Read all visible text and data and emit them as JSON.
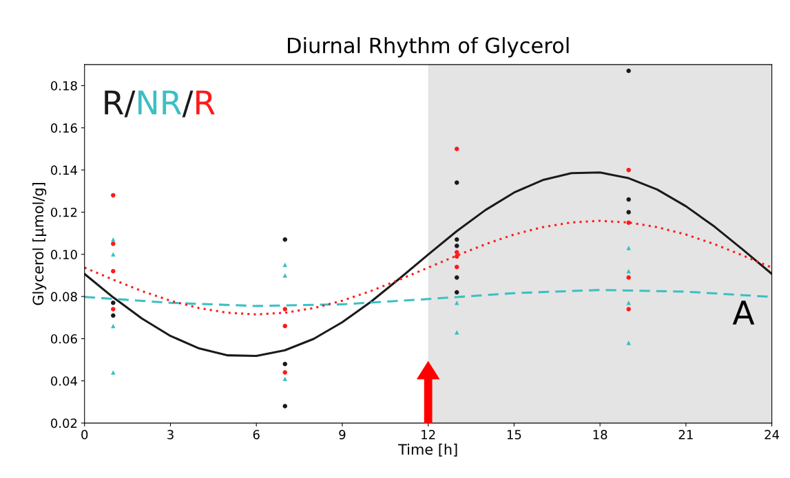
{
  "chart_data": {
    "type": "scatter",
    "title": "Diurnal Rhythm of Glycerol",
    "xlabel": "Time [h]",
    "ylabel": "Glycerol [µmol/g]",
    "xlim": [
      0,
      24
    ],
    "xticks": [
      0,
      3,
      6,
      9,
      12,
      15,
      18,
      21,
      24
    ],
    "ylim": [
      0.02,
      0.19
    ],
    "yticks": [
      {
        "value": 0.02,
        "label": "0.02"
      },
      {
        "value": 0.04,
        "label": "0.04"
      },
      {
        "value": 0.06,
        "label": "0.06"
      },
      {
        "value": 0.08,
        "label": "0.08"
      },
      {
        "value": 0.1,
        "label": "0.10"
      },
      {
        "value": 0.12,
        "label": "0.12"
      },
      {
        "value": 0.14,
        "label": "0.14"
      },
      {
        "value": 0.16,
        "label": "0.16"
      },
      {
        "value": 0.18,
        "label": "0.18"
      }
    ],
    "grid": false,
    "legend": false,
    "bands": [
      {
        "axis": "x",
        "from": 12,
        "to": 24,
        "color": "#e4e4e4"
      }
    ],
    "annotations": [
      "R",
      "/",
      "NR",
      "/",
      "R",
      "A"
    ],
    "series": [
      {
        "color": "#1a1a1a",
        "marker": "circle",
        "x": [
          1,
          1,
          7,
          7,
          7,
          13,
          13,
          13,
          13,
          13,
          19,
          19,
          19
        ],
        "values": [
          0.077,
          0.071,
          0.107,
          0.048,
          0.028,
          0.134,
          0.107,
          0.104,
          0.089,
          0.082,
          0.187,
          0.126,
          0.12
        ]
      },
      {
        "color": "#3bbfc4",
        "marker": "triangle",
        "x": [
          1,
          1,
          1,
          1,
          7,
          7,
          7,
          13,
          13,
          19,
          19,
          19,
          19
        ],
        "values": [
          0.107,
          0.1,
          0.066,
          0.044,
          0.095,
          0.09,
          0.041,
          0.077,
          0.063,
          0.103,
          0.092,
          0.077,
          0.058
        ]
      },
      {
        "color": "#ff1a1a",
        "marker": "circle",
        "x": [
          1,
          1,
          1,
          1,
          7,
          7,
          7,
          13,
          13,
          13,
          13,
          19,
          19,
          19,
          19
        ],
        "values": [
          0.128,
          0.105,
          0.092,
          0.074,
          0.074,
          0.066,
          0.044,
          0.15,
          0.101,
          0.099,
          0.094,
          0.14,
          0.115,
          0.089,
          0.074
        ]
      },
      {
        "type": "line",
        "color": "#1a1a1a",
        "line_style": "solid",
        "x": [
          0,
          1,
          2,
          3,
          4,
          5,
          6,
          7,
          8,
          9,
          10,
          11,
          12,
          13,
          14,
          15,
          16,
          17,
          18,
          19,
          20,
          21,
          22,
          23,
          24
        ],
        "values": [
          0.0907,
          0.0796,
          0.0696,
          0.0613,
          0.0554,
          0.0521,
          0.0518,
          0.0545,
          0.0599,
          0.0678,
          0.0775,
          0.0885,
          0.0999,
          0.111,
          0.121,
          0.1293,
          0.1352,
          0.1385,
          0.1388,
          0.1361,
          0.1307,
          0.1228,
          0.1131,
          0.1021,
          0.0907
        ]
      },
      {
        "type": "line",
        "color": "#3bbfc4",
        "line_style": "dashed",
        "x": [
          0,
          3,
          6,
          9,
          12,
          15,
          18,
          21,
          24
        ],
        "values": [
          0.0798,
          0.077,
          0.0755,
          0.0763,
          0.0788,
          0.0816,
          0.0831,
          0.0823,
          0.0798
        ]
      },
      {
        "type": "line",
        "color": "#ff1a1a",
        "line_style": "dotted",
        "x": [
          0,
          1,
          2,
          3,
          4,
          5,
          6,
          7,
          8,
          9,
          10,
          11,
          12,
          13,
          14,
          15,
          16,
          17,
          18,
          19,
          20,
          21,
          22,
          23,
          24
        ],
        "values": [
          0.0937,
          0.088,
          0.0826,
          0.078,
          0.0745,
          0.0723,
          0.0715,
          0.0723,
          0.0745,
          0.078,
          0.0826,
          0.088,
          0.0937,
          0.0994,
          0.1048,
          0.1094,
          0.1129,
          0.1151,
          0.1159,
          0.1151,
          0.1129,
          0.1094,
          0.1048,
          0.0994,
          0.0937
        ]
      }
    ]
  }
}
